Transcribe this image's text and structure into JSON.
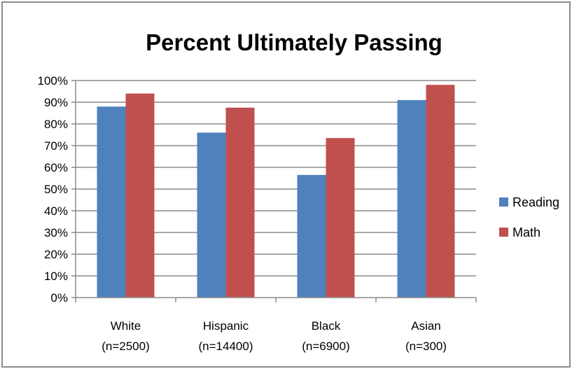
{
  "chart_data": {
    "type": "bar",
    "title": "Percent Ultimately Passing",
    "categories": [
      "White",
      "Hispanic",
      "Black",
      "Asian"
    ],
    "category_sublabels": [
      "(n=2500)",
      "(n=14400)",
      "(n=6900)",
      "(n=300)"
    ],
    "series": [
      {
        "name": "Reading",
        "color": "#4f81bd",
        "values": [
          88,
          76,
          56.5,
          91
        ]
      },
      {
        "name": "Math",
        "color": "#c0504d",
        "values": [
          94,
          87.5,
          73.5,
          98
        ]
      }
    ],
    "y_ticks": [
      "0%",
      "10%",
      "20%",
      "30%",
      "40%",
      "50%",
      "60%",
      "70%",
      "80%",
      "90%",
      "100%"
    ],
    "ylim": [
      0,
      100
    ],
    "grid": true,
    "legend_position": "right"
  }
}
